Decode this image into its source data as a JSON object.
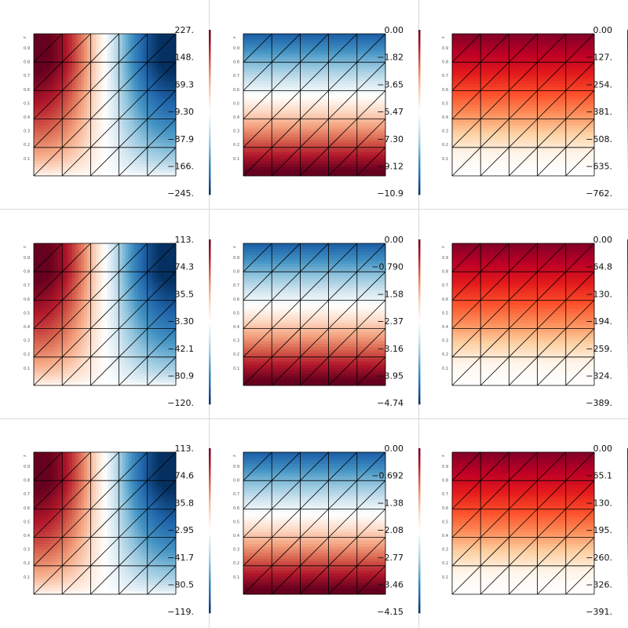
{
  "colors": {
    "divider": "#d9d9d9",
    "diverging_cmap": [
      "#67001f",
      "#b2182b",
      "#d6604d",
      "#f4a582",
      "#fddbc7",
      "#ffffff",
      "#d1e5f0",
      "#92c5de",
      "#4393c3",
      "#2166ac",
      "#053061"
    ],
    "reds_cmap": [
      "#ffffff",
      "#fff5ea",
      "#fdd0a2",
      "#fc8d59",
      "#fc4e2a",
      "#e31a1c",
      "#bd0026",
      "#800026"
    ]
  },
  "panel_axis_label": "z",
  "chart_data": [
    {
      "type": "heatmap",
      "mesh": {
        "cols": 5,
        "rows": 5,
        "triangulated": true
      },
      "field": "x_diverging",
      "colormap": "RdBu",
      "clim": [
        -245,
        227
      ],
      "colorbar_labels": [
        "227.",
        "148.",
        "69.3",
        "−9.30",
        "−87.9",
        "−166.",
        "−245."
      ],
      "y_tick_labels": [
        "0.9",
        "0.8",
        "0.7",
        "0.6",
        "0.5",
        "0.4",
        "0.3",
        "0.2",
        "0.1"
      ]
    },
    {
      "type": "heatmap",
      "mesh": {
        "cols": 5,
        "rows": 5,
        "triangulated": true
      },
      "field": "y_diverging",
      "colormap": "RdBu",
      "clim": [
        -10.9,
        0
      ],
      "colorbar_labels": [
        "0.00",
        "−1.82",
        "−3.65",
        "−5.47",
        "−7.30",
        "−9.12",
        "−10.9"
      ],
      "y_tick_labels": [
        "0.9",
        "0.8",
        "0.7",
        "0.6",
        "0.5",
        "0.4",
        "0.3",
        "0.2",
        "0.1"
      ]
    },
    {
      "type": "heatmap",
      "mesh": {
        "cols": 5,
        "rows": 5,
        "triangulated": true
      },
      "field": "y_sequential",
      "colormap": "Reds",
      "clim": [
        -762,
        0
      ],
      "colorbar_labels": [
        "0.00",
        "−127.",
        "−254.",
        "−381.",
        "−508.",
        "−635.",
        "−762."
      ],
      "y_tick_labels": [
        "0.9",
        "0.8",
        "0.7",
        "0.6",
        "0.5",
        "0.4",
        "0.3",
        "0.2",
        "0.1"
      ]
    },
    {
      "type": "heatmap",
      "mesh": {
        "cols": 5,
        "rows": 5,
        "triangulated": true
      },
      "field": "x_diverging",
      "colormap": "RdBu",
      "clim": [
        -120,
        113
      ],
      "colorbar_labels": [
        "113.",
        "74.3",
        "35.5",
        "−3.30",
        "−42.1",
        "−80.9",
        "−120."
      ],
      "y_tick_labels": [
        "0.9",
        "0.8",
        "0.7",
        "0.6",
        "0.5",
        "0.4",
        "0.3",
        "0.2",
        "0.1"
      ]
    },
    {
      "type": "heatmap",
      "mesh": {
        "cols": 5,
        "rows": 5,
        "triangulated": true
      },
      "field": "y_diverging",
      "colormap": "RdBu",
      "clim": [
        -4.74,
        0
      ],
      "colorbar_labels": [
        "0.00",
        "−0.790",
        "−1.58",
        "−2.37",
        "−3.16",
        "−3.95",
        "−4.74"
      ],
      "y_tick_labels": [
        "0.9",
        "0.8",
        "0.7",
        "0.6",
        "0.5",
        "0.4",
        "0.3",
        "0.2",
        "0.1"
      ]
    },
    {
      "type": "heatmap",
      "mesh": {
        "cols": 5,
        "rows": 5,
        "triangulated": true
      },
      "field": "y_sequential",
      "colormap": "Reds",
      "clim": [
        -389,
        0
      ],
      "colorbar_labels": [
        "0.00",
        "−64.8",
        "−130.",
        "−194.",
        "−259.",
        "−324.",
        "−389."
      ],
      "y_tick_labels": [
        "0.9",
        "0.8",
        "0.7",
        "0.6",
        "0.5",
        "0.4",
        "0.3",
        "0.2",
        "0.1"
      ]
    },
    {
      "type": "heatmap",
      "mesh": {
        "cols": 5,
        "rows": 5,
        "triangulated": true
      },
      "field": "x_diverging",
      "colormap": "RdBu",
      "clim": [
        -119,
        113
      ],
      "colorbar_labels": [
        "113.",
        "74.6",
        "35.8",
        "−2.95",
        "−41.7",
        "−80.5",
        "−119."
      ],
      "y_tick_labels": [
        "0.9",
        "0.8",
        "0.7",
        "0.6",
        "0.5",
        "0.4",
        "0.3",
        "0.2",
        "0.1"
      ]
    },
    {
      "type": "heatmap",
      "mesh": {
        "cols": 5,
        "rows": 5,
        "triangulated": true
      },
      "field": "y_diverging",
      "colormap": "RdBu",
      "clim": [
        -4.15,
        0
      ],
      "colorbar_labels": [
        "0.00",
        "−0.692",
        "−1.38",
        "−2.08",
        "−2.77",
        "−3.46",
        "−4.15"
      ],
      "y_tick_labels": [
        "0.9",
        "0.8",
        "0.7",
        "0.6",
        "0.5",
        "0.4",
        "0.3",
        "0.2",
        "0.1"
      ]
    },
    {
      "type": "heatmap",
      "mesh": {
        "cols": 5,
        "rows": 5,
        "triangulated": true
      },
      "field": "y_sequential",
      "colormap": "Reds",
      "clim": [
        -391,
        0
      ],
      "colorbar_labels": [
        "0.00",
        "−65.1",
        "−130.",
        "−195.",
        "−260.",
        "−326.",
        "−391."
      ],
      "y_tick_labels": [
        "0.9",
        "0.8",
        "0.7",
        "0.6",
        "0.5",
        "0.4",
        "0.3",
        "0.2",
        "0.1"
      ]
    }
  ]
}
